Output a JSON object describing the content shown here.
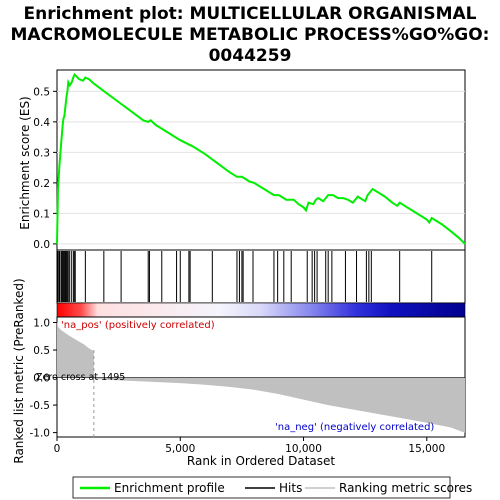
{
  "chart_data": {
    "type": "line",
    "title_lines": [
      "Enrichment plot: MULTICELLULAR ORGANISMAL",
      "MACROMOLECULE METABOLIC PROCESS%GO%GO:",
      "0044259"
    ],
    "es_panel": {
      "ylabel": "Enrichment score (ES)",
      "ylim": [
        -0.02,
        0.57
      ],
      "yticks": [
        0.0,
        0.1,
        0.2,
        0.3,
        0.4,
        0.5
      ],
      "ytick_labels": [
        "0.0",
        "0.1",
        "0.2",
        "0.3",
        "0.4",
        "0.5"
      ],
      "line_color": "#00ee00",
      "points": [
        [
          0,
          0.0
        ],
        [
          40,
          0.18
        ],
        [
          100,
          0.26
        ],
        [
          180,
          0.34
        ],
        [
          230,
          0.39
        ],
        [
          260,
          0.41
        ],
        [
          300,
          0.42
        ],
        [
          340,
          0.45
        ],
        [
          380,
          0.48
        ],
        [
          420,
          0.5
        ],
        [
          460,
          0.53
        ],
        [
          520,
          0.52
        ],
        [
          600,
          0.53
        ],
        [
          680,
          0.55
        ],
        [
          720,
          0.555
        ],
        [
          900,
          0.54
        ],
        [
          1050,
          0.535
        ],
        [
          1150,
          0.545
        ],
        [
          1300,
          0.54
        ],
        [
          1500,
          0.525
        ],
        [
          2000,
          0.495
        ],
        [
          2500,
          0.465
        ],
        [
          3000,
          0.435
        ],
        [
          3500,
          0.405
        ],
        [
          3700,
          0.4
        ],
        [
          3800,
          0.405
        ],
        [
          4000,
          0.39
        ],
        [
          4500,
          0.365
        ],
        [
          5000,
          0.34
        ],
        [
          5500,
          0.32
        ],
        [
          6000,
          0.295
        ],
        [
          6500,
          0.265
        ],
        [
          7000,
          0.235
        ],
        [
          7300,
          0.22
        ],
        [
          7500,
          0.22
        ],
        [
          7800,
          0.205
        ],
        [
          8000,
          0.2
        ],
        [
          8500,
          0.175
        ],
        [
          8800,
          0.16
        ],
        [
          9000,
          0.16
        ],
        [
          9300,
          0.145
        ],
        [
          9600,
          0.145
        ],
        [
          9800,
          0.13
        ],
        [
          10000,
          0.12
        ],
        [
          10100,
          0.11
        ],
        [
          10200,
          0.135
        ],
        [
          10400,
          0.13
        ],
        [
          10500,
          0.145
        ],
        [
          10600,
          0.15
        ],
        [
          10800,
          0.14
        ],
        [
          11000,
          0.16
        ],
        [
          11200,
          0.16
        ],
        [
          11400,
          0.15
        ],
        [
          11600,
          0.15
        ],
        [
          11800,
          0.145
        ],
        [
          12000,
          0.135
        ],
        [
          12200,
          0.155
        ],
        [
          12400,
          0.145
        ],
        [
          12500,
          0.14
        ],
        [
          12600,
          0.16
        ],
        [
          12800,
          0.18
        ],
        [
          13000,
          0.17
        ],
        [
          13300,
          0.155
        ],
        [
          13600,
          0.135
        ],
        [
          13800,
          0.125
        ],
        [
          13900,
          0.135
        ],
        [
          14200,
          0.12
        ],
        [
          14600,
          0.1
        ],
        [
          15000,
          0.08
        ],
        [
          15100,
          0.07
        ],
        [
          15200,
          0.085
        ],
        [
          15600,
          0.065
        ],
        [
          16000,
          0.04
        ],
        [
          16300,
          0.02
        ],
        [
          16550,
          0.0
        ]
      ]
    },
    "hits": [
      40,
      90,
      120,
      180,
      220,
      260,
      300,
      340,
      370,
      410,
      450,
      500,
      580,
      660,
      700,
      740,
      1150,
      1900,
      2600,
      3700,
      3750,
      4250,
      4850,
      5000,
      5350,
      5400,
      6300,
      7300,
      7400,
      7500,
      7550,
      7950,
      8800,
      8950,
      9200,
      9500,
      10150,
      10350,
      10450,
      10550,
      10900,
      11000,
      11150,
      11700,
      12150,
      12550,
      12650,
      12750,
      13900,
      15200
    ],
    "hits_axis_max": 16550,
    "ranked_panel": {
      "ylabel": "Ranked list metric (PreRanked)",
      "ylim": [
        -1.08,
        1.1
      ],
      "yticks": [
        1.0,
        0.5,
        0.0,
        -0.5,
        -1.0
      ],
      "ytick_labels": [
        "1.0",
        "0.5",
        "0.0",
        "-0.5",
        "-1.0"
      ],
      "fill_color": "#c0c0c0",
      "points": [
        [
          0,
          1.02
        ],
        [
          50,
          0.92
        ],
        [
          150,
          0.87
        ],
        [
          300,
          0.82
        ],
        [
          500,
          0.76
        ],
        [
          800,
          0.68
        ],
        [
          1100,
          0.6
        ],
        [
          1300,
          0.53
        ],
        [
          1494,
          0.48
        ],
        [
          1495,
          0.0
        ],
        [
          1496,
          -0.02
        ],
        [
          2000,
          -0.04
        ],
        [
          3000,
          -0.06
        ],
        [
          4000,
          -0.08
        ],
        [
          5000,
          -0.1
        ],
        [
          6000,
          -0.13
        ],
        [
          7000,
          -0.17
        ],
        [
          8000,
          -0.22
        ],
        [
          9000,
          -0.3
        ],
        [
          10000,
          -0.4
        ],
        [
          11000,
          -0.5
        ],
        [
          12000,
          -0.58
        ],
        [
          13000,
          -0.66
        ],
        [
          14000,
          -0.74
        ],
        [
          15000,
          -0.82
        ],
        [
          16000,
          -0.91
        ],
        [
          16400,
          -0.98
        ],
        [
          16550,
          -1.0
        ]
      ],
      "zero_cross_label": "Zero cross at 1495",
      "zero_cross_rank": 1495,
      "pos_label": "'na_pos' (positively correlated)",
      "neg_label": "'na_neg' (negatively correlated)"
    },
    "xlabel": "Rank in Ordered Dataset",
    "xlim": [
      0,
      16550
    ],
    "xticks": [
      0,
      5000,
      10000,
      15000
    ],
    "xtick_labels": [
      "0",
      "5,000",
      "10,000",
      "15,000"
    ],
    "heatmap_bar": {
      "positive_color": "#ff0000",
      "negative_color": "#0000ff"
    },
    "legend": {
      "placement": "bottom",
      "entries": [
        {
          "label": "Enrichment profile",
          "color": "#00ee00"
        },
        {
          "label": "Hits",
          "color": "#000000"
        },
        {
          "label": "Ranking metric scores",
          "color": "#c0c0c0"
        }
      ]
    }
  }
}
